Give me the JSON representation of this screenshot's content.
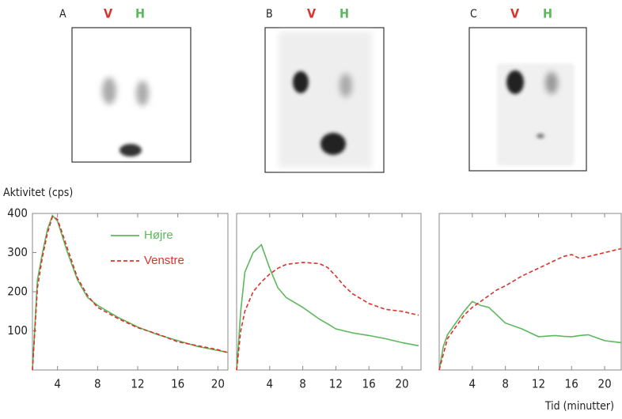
{
  "panels": [
    {
      "label": "A",
      "left": "V",
      "right": "H"
    },
    {
      "label": "B",
      "left": "V",
      "right": "H"
    },
    {
      "label": "C",
      "left": "V",
      "right": "H"
    }
  ],
  "chart_data": [
    {
      "type": "line",
      "y_label": "Aktivitet (cps)",
      "x": [
        1.5,
        2,
        2.5,
        3,
        3.5,
        4,
        5,
        6,
        7,
        8,
        10,
        12,
        14,
        16,
        18,
        20,
        21
      ],
      "series": [
        {
          "name": "Højre",
          "color": "#5cb85c",
          "style": "solid",
          "values": [
            0,
            230,
            300,
            360,
            395,
            380,
            300,
            230,
            185,
            165,
            135,
            110,
            90,
            75,
            60,
            50,
            45
          ]
        },
        {
          "name": "Venstre",
          "color": "#d9332a",
          "style": "dashed",
          "values": [
            0,
            210,
            290,
            350,
            392,
            385,
            310,
            235,
            190,
            160,
            132,
            108,
            92,
            72,
            62,
            52,
            44
          ]
        }
      ],
      "xlim": [
        1.5,
        21
      ],
      "ylim": [
        0,
        400
      ],
      "xticks": [
        4,
        8,
        12,
        16,
        20
      ],
      "yticks": [
        100,
        200,
        300,
        400
      ]
    },
    {
      "type": "line",
      "x": [
        0,
        0.5,
        1,
        2,
        3,
        4,
        5,
        6,
        8,
        10,
        11,
        12,
        13,
        14,
        16,
        18,
        20,
        22
      ],
      "series": [
        {
          "color": "#5cb85c",
          "style": "solid",
          "values": [
            0,
            150,
            250,
            300,
            320,
            260,
            210,
            185,
            160,
            130,
            118,
            105,
            100,
            95,
            88,
            80,
            70,
            62
          ]
        },
        {
          "color": "#d9332a",
          "style": "dashed",
          "values": [
            0,
            100,
            150,
            200,
            225,
            245,
            260,
            270,
            275,
            272,
            262,
            240,
            215,
            195,
            170,
            155,
            150,
            140
          ]
        }
      ],
      "xlim": [
        0,
        22.3
      ],
      "ylim": [
        0,
        400
      ],
      "xticks": [
        4,
        8,
        12,
        16,
        20
      ]
    },
    {
      "type": "line",
      "x_label": "Tid (minutter)",
      "x": [
        0,
        0.5,
        1,
        2,
        3,
        4,
        5,
        6,
        7,
        8,
        10,
        12,
        14,
        15,
        16,
        17,
        18,
        20,
        22
      ],
      "series": [
        {
          "color": "#5cb85c",
          "style": "solid",
          "values": [
            0,
            60,
            90,
            120,
            150,
            175,
            165,
            160,
            140,
            120,
            105,
            85,
            88,
            86,
            85,
            88,
            90,
            75,
            70
          ]
        },
        {
          "color": "#d9332a",
          "style": "dashed",
          "values": [
            0,
            40,
            80,
            110,
            140,
            160,
            175,
            190,
            205,
            215,
            240,
            260,
            280,
            290,
            295,
            285,
            290,
            300,
            310
          ]
        }
      ],
      "xlim": [
        0,
        22
      ],
      "ylim": [
        0,
        400
      ],
      "xticks": [
        4,
        8,
        12,
        16,
        20
      ]
    }
  ]
}
